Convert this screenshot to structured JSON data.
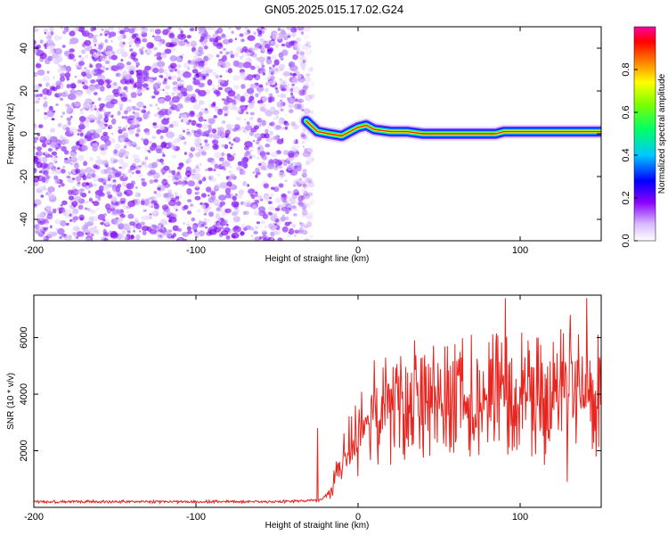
{
  "title": "GN05.2025.015.17.02.G24",
  "chart_data": [
    {
      "type": "heatmap",
      "xlabel": "Height of straight line (km)",
      "ylabel": "Frequency (Hz)",
      "xlim": [
        -200,
        150
      ],
      "ylim": [
        -50,
        50
      ],
      "x_ticks": [
        -200,
        -100,
        0,
        100
      ],
      "y_ticks": [
        -40,
        -20,
        0,
        20,
        40
      ],
      "grid": false,
      "noise_region_x": [
        -200,
        -28
      ],
      "colorbar": {
        "label": "Normalized spectral amplitude",
        "range": [
          0,
          1
        ],
        "ticks": [
          0.0,
          0.2,
          0.4,
          0.6,
          0.8
        ],
        "tick_labels": [
          "0.0",
          "0.2",
          "0.4",
          "0.6",
          "0.8"
        ],
        "colormap": [
          "#ffffff",
          "#e8d8ff",
          "#8800ff",
          "#0000ff",
          "#00ffff",
          "#00ff00",
          "#ffff00",
          "#ff0000",
          "#ff0066"
        ]
      },
      "ridge": {
        "x": [
          -32,
          -25,
          -18,
          -10,
          -5,
          0,
          5,
          10,
          20,
          30,
          40,
          50,
          60,
          70,
          80,
          85,
          90,
          100,
          110,
          120,
          130,
          140,
          150
        ],
        "y": [
          6,
          1,
          0,
          -1,
          1,
          3,
          4,
          2,
          1,
          1,
          0,
          0,
          0,
          0,
          0,
          0,
          1,
          1,
          1,
          1,
          1,
          1,
          1
        ]
      }
    },
    {
      "type": "line",
      "xlabel": "Height of straight line (km)",
      "ylabel": "SNR (10 * v/v)",
      "xlim": [
        -200,
        150
      ],
      "ylim": [
        0,
        7500
      ],
      "x_ticks": [
        -200,
        -100,
        0,
        100
      ],
      "y_ticks": [
        2000,
        4000,
        6000
      ],
      "grid": false,
      "series": [
        {
          "color": "#e8251f",
          "x": [
            -200,
            -150,
            -100,
            -50,
            -25,
            -18,
            -15,
            -10,
            -5,
            0,
            5,
            10,
            15,
            20,
            25,
            30,
            35,
            40,
            45,
            50,
            55,
            60,
            65,
            70,
            75,
            80,
            85,
            90,
            95,
            100,
            105,
            110,
            115,
            120,
            125,
            130,
            135,
            140,
            145,
            150
          ],
          "y": [
            200,
            200,
            200,
            200,
            250,
            400,
            900,
            1600,
            2200,
            2600,
            2900,
            3200,
            3400,
            3500,
            3600,
            3650,
            3700,
            3750,
            3800,
            3850,
            3900,
            3900,
            3900,
            3950,
            3950,
            3950,
            4000,
            4000,
            4000,
            4000,
            4000,
            4000,
            4000,
            4000,
            4000,
            4000,
            4000,
            4000,
            4000,
            4000
          ],
          "peaks": [
            {
              "x": -25,
              "y": 2800
            },
            {
              "x": 10,
              "y": 5200
            },
            {
              "x": 20,
              "y": 5700
            },
            {
              "x": 35,
              "y": 5900
            },
            {
              "x": 55,
              "y": 5700
            },
            {
              "x": 70,
              "y": 6100
            },
            {
              "x": 85,
              "y": 5800
            },
            {
              "x": 91,
              "y": 7400
            },
            {
              "x": 95,
              "y": 6200
            },
            {
              "x": 105,
              "y": 5900
            },
            {
              "x": 115,
              "y": 6400
            },
            {
              "x": 125,
              "y": 6300
            },
            {
              "x": 131,
              "y": 6800
            },
            {
              "x": 141,
              "y": 7400
            },
            {
              "x": 148,
              "y": 6100
            }
          ],
          "troughs": [
            {
              "x": 0,
              "y": 1100
            },
            {
              "x": 20,
              "y": 1500
            },
            {
              "x": 40,
              "y": 2200
            },
            {
              "x": 60,
              "y": 2300
            },
            {
              "x": 80,
              "y": 2300
            },
            {
              "x": 95,
              "y": 2000
            },
            {
              "x": 115,
              "y": 1500
            },
            {
              "x": 129,
              "y": 900
            },
            {
              "x": 147,
              "y": 1800
            }
          ]
        }
      ]
    }
  ]
}
